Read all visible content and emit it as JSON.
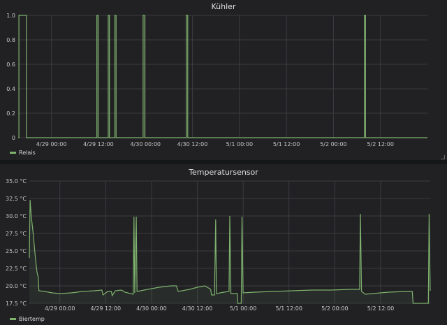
{
  "theme": {
    "panel_bg": "#212124",
    "grid": "#3b3c3e",
    "tick_text": "#c8c8c8",
    "series_color": "#7eb26d"
  },
  "x_ticks": [
    "4/29 00:00",
    "4/29 12:00",
    "4/30 00:00",
    "4/30 12:00",
    "5/1 00:00",
    "5/1 12:00",
    "5/2 00:00",
    "5/2 12:00"
  ],
  "chart_data": [
    {
      "type": "line",
      "title": "Kühler",
      "x_unit": "hours since 4/28 00:00",
      "xlim": [
        15.5,
        120
      ],
      "ylim": [
        0,
        1
      ],
      "y_ticks": [
        "0",
        "0.2",
        "0.4",
        "0.6",
        "0.8",
        "1.0"
      ],
      "grid": true,
      "legend_position": "bottom-left",
      "series": [
        {
          "name": "Relais",
          "color": "#7eb26d",
          "points": [
            [
              15.5,
              0
            ],
            [
              15.7,
              0
            ],
            [
              15.7,
              1
            ],
            [
              17.6,
              1
            ],
            [
              17.6,
              0
            ],
            [
              35.6,
              0
            ],
            [
              35.6,
              1
            ],
            [
              35.9,
              1
            ],
            [
              35.9,
              0
            ],
            [
              38.5,
              0
            ],
            [
              38.5,
              1
            ],
            [
              38.8,
              1
            ],
            [
              38.8,
              0
            ],
            [
              40.2,
              0
            ],
            [
              40.2,
              1
            ],
            [
              40.5,
              1
            ],
            [
              40.5,
              0
            ],
            [
              47.4,
              0
            ],
            [
              47.4,
              1
            ],
            [
              47.8,
              1
            ],
            [
              47.8,
              0
            ],
            [
              58.4,
              0
            ],
            [
              58.4,
              1
            ],
            [
              58.8,
              1
            ],
            [
              58.8,
              0
            ],
            [
              103.9,
              0
            ],
            [
              103.9,
              1
            ],
            [
              104.2,
              1
            ],
            [
              104.2,
              0
            ],
            [
              120,
              0
            ]
          ]
        }
      ]
    },
    {
      "type": "line",
      "title": "Temperatursensor",
      "x_unit": "hours since 4/28 00:00",
      "xlim": [
        16,
        121
      ],
      "ylim": [
        17.5,
        35
      ],
      "y_ticks": [
        "17.5 °C",
        "20.0 °C",
        "22.5 °C",
        "25.0 °C",
        "27.5 °C",
        "30.0 °C",
        "32.5 °C",
        "35.0 °C"
      ],
      "grid": true,
      "legend_position": "bottom-left",
      "series": [
        {
          "name": "Biertemp",
          "color": "#7eb26d",
          "points": [
            [
              16,
              24.0
            ],
            [
              16.2,
              32.3
            ],
            [
              16.5,
              30.0
            ],
            [
              17.0,
              27.5
            ],
            [
              17.5,
              24.5
            ],
            [
              18.0,
              22.0
            ],
            [
              18.3,
              21.3
            ],
            [
              18.5,
              19.3
            ],
            [
              20,
              19.2
            ],
            [
              22,
              19.0
            ],
            [
              24,
              18.9
            ],
            [
              27,
              19.0
            ],
            [
              30,
              19.2
            ],
            [
              33,
              19.3
            ],
            [
              35,
              19.4
            ],
            [
              35.3,
              18.7
            ],
            [
              36.5,
              19.2
            ],
            [
              37.5,
              19.2
            ],
            [
              37.7,
              18.6
            ],
            [
              38.5,
              19.3
            ],
            [
              40.0,
              19.4
            ],
            [
              40.5,
              19.3
            ],
            [
              41,
              19.1
            ],
            [
              43.2,
              18.8
            ],
            [
              43.4,
              29.9
            ],
            [
              43.6,
              19.0
            ],
            [
              44,
              29.9
            ],
            [
              44.2,
              19.2
            ],
            [
              47,
              19.5
            ],
            [
              50,
              19.8
            ],
            [
              53,
              20.0
            ],
            [
              54.5,
              20.0
            ],
            [
              55,
              19.2
            ],
            [
              58,
              19.5
            ],
            [
              60,
              19.8
            ],
            [
              62,
              20.0
            ],
            [
              63.5,
              19.5
            ],
            [
              63.7,
              18.7
            ],
            [
              64.5,
              18.7
            ],
            [
              64.8,
              29.5
            ],
            [
              65.0,
              18.9
            ],
            [
              67,
              19.1
            ],
            [
              68.3,
              19.2
            ],
            [
              68.5,
              30.0
            ],
            [
              68.8,
              18.9
            ],
            [
              70.5,
              18.9
            ],
            [
              70.6,
              17.5
            ],
            [
              71.5,
              17.5
            ],
            [
              71.7,
              29.9
            ],
            [
              72.0,
              19.0
            ],
            [
              75,
              19.1
            ],
            [
              80,
              19.2
            ],
            [
              85,
              19.3
            ],
            [
              90,
              19.4
            ],
            [
              95,
              19.4
            ],
            [
              100,
              19.5
            ],
            [
              102.5,
              19.5
            ],
            [
              102.7,
              30.3
            ],
            [
              103.0,
              19.2
            ],
            [
              104,
              18.8
            ],
            [
              106,
              18.9
            ],
            [
              110,
              19.1
            ],
            [
              115,
              19.2
            ],
            [
              116.3,
              19.2
            ],
            [
              116.5,
              17.5
            ],
            [
              120.5,
              17.5
            ],
            [
              120.7,
              30.3
            ],
            [
              121,
              19.3
            ]
          ]
        }
      ]
    }
  ]
}
